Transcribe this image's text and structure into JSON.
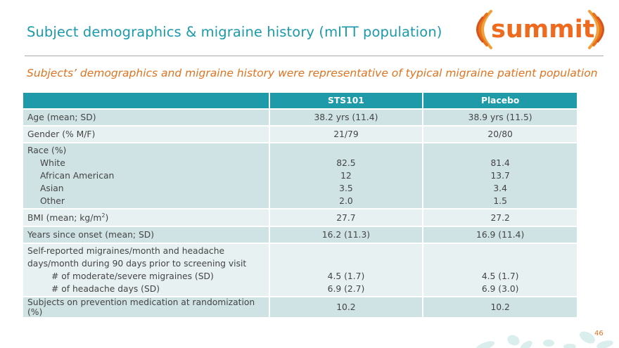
{
  "slide": {
    "title": "Subject demographics & migraine history (mITT population)",
    "subtitle": "Subjects’ demographics and migraine history were representative of typical migraine patient population",
    "page_number": "46"
  },
  "logo": {
    "text": "summit"
  },
  "table": {
    "headers": [
      "",
      "STS101",
      "Placebo"
    ],
    "age": {
      "label": "Age (mean; SD)",
      "sts": "38.2 yrs (11.4)",
      "pbo": "38.9 yrs (11.5)"
    },
    "gender": {
      "label": "Gender (% M/F)",
      "sts": "21/79",
      "pbo": "20/80"
    },
    "race": {
      "label": "Race (%)",
      "sub": [
        {
          "label": "White",
          "sts": "82.5",
          "pbo": "81.4"
        },
        {
          "label": "African American",
          "sts": "12",
          "pbo": "13.7"
        },
        {
          "label": "Asian",
          "sts": "3.5",
          "pbo": "3.4"
        },
        {
          "label": "Other",
          "sts": "2.0",
          "pbo": "1.5"
        }
      ]
    },
    "bmi": {
      "label": "BMI (mean; kg/m",
      "label_sup": "2",
      "label_end": ")",
      "sts": "27.7",
      "pbo": "27.2"
    },
    "onset": {
      "label": "Years since onset (mean; SD)",
      "sts": "16.2 (11.3)",
      "pbo": "16.9 (11.4)"
    },
    "migraines": {
      "label_line1": "Self-reported migraines/month and headache",
      "label_line2": "days/month during 90 days prior to screening visit",
      "sub": [
        {
          "label": "# of moderate/severe migraines (SD)",
          "sts": "4.5 (1.7)",
          "pbo": "4.5 (1.7)"
        },
        {
          "label": "# of headache days (SD)",
          "sts": "6.9 (2.7)",
          "pbo": "6.9 (3.0)"
        }
      ]
    },
    "prevention": {
      "label": "Subjects on prevention medication at randomization (%)",
      "sts": "10.2",
      "pbo": "10.2"
    }
  },
  "colors": {
    "teal": "#1e9aa8",
    "orange": "#e0731f",
    "row_dark": "#cfe3e5",
    "row_light": "#e7f1f1"
  }
}
